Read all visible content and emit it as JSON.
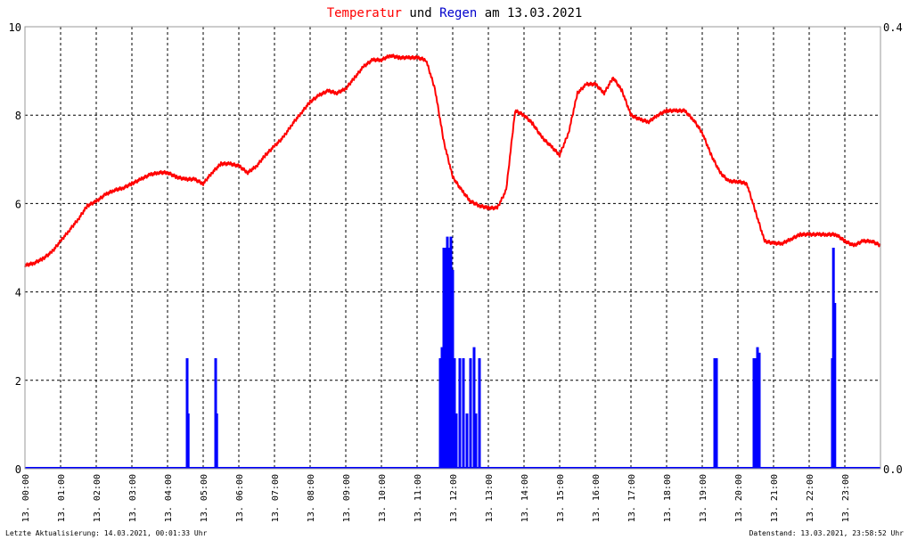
{
  "chart_data": {
    "type": "line",
    "title": {
      "part1": "Temperatur",
      "part2": " und ",
      "part3": "Regen",
      "part4": " am 13.03.2021"
    },
    "colors": {
      "temperature": "#ff0000",
      "rain": "#0000ff",
      "grid": "#000000",
      "frame": "#999999"
    },
    "ylim_left": [
      0,
      10
    ],
    "yticks_left": [
      "0",
      "2",
      "4",
      "6",
      "8",
      "10"
    ],
    "ylim_right": [
      0,
      0.4
    ],
    "yticks_right": [
      "0.0",
      "0.4"
    ],
    "xlim_hours": [
      0,
      24
    ],
    "xticks": [
      "13. 00:00",
      "13. 01:00",
      "13. 02:00",
      "13. 03:00",
      "13. 04:00",
      "13. 05:00",
      "13. 06:00",
      "13. 07:00",
      "13. 08:00",
      "13. 09:00",
      "13. 10:00",
      "13. 11:00",
      "13. 12:00",
      "13. 13:00",
      "13. 14:00",
      "13. 15:00",
      "13. 16:00",
      "13. 17:00",
      "13. 18:00",
      "13. 19:00",
      "13. 20:00",
      "13. 21:00",
      "13. 22:00",
      "13. 23:00"
    ],
    "grid": true,
    "series": [
      {
        "name": "Temperatur",
        "axis": "left",
        "x_hours": [
          0,
          0.25,
          0.5,
          0.75,
          1.0,
          1.25,
          1.5,
          1.75,
          2.0,
          2.25,
          2.5,
          2.75,
          3.0,
          3.25,
          3.5,
          3.75,
          4.0,
          4.25,
          4.5,
          4.75,
          5.0,
          5.25,
          5.5,
          5.75,
          6.0,
          6.25,
          6.5,
          6.75,
          7.0,
          7.25,
          7.5,
          7.75,
          8.0,
          8.25,
          8.5,
          8.75,
          9.0,
          9.25,
          9.5,
          9.75,
          10.0,
          10.25,
          10.5,
          10.75,
          11.0,
          11.25,
          11.5,
          11.75,
          12.0,
          12.25,
          12.5,
          12.75,
          13.0,
          13.25,
          13.5,
          13.75,
          14.0,
          14.25,
          14.5,
          14.75,
          15.0,
          15.25,
          15.5,
          15.75,
          16.0,
          16.25,
          16.5,
          16.75,
          17.0,
          17.25,
          17.5,
          17.75,
          18.0,
          18.25,
          18.5,
          18.75,
          19.0,
          19.25,
          19.5,
          19.75,
          20.0,
          20.25,
          20.5,
          20.75,
          21.0,
          21.25,
          21.5,
          21.75,
          22.0,
          22.25,
          22.5,
          22.75,
          23.0,
          23.25,
          23.5,
          23.75,
          24.0
        ],
        "values": [
          4.6,
          4.65,
          4.75,
          4.9,
          5.15,
          5.4,
          5.65,
          5.95,
          6.05,
          6.2,
          6.3,
          6.35,
          6.45,
          6.55,
          6.65,
          6.7,
          6.7,
          6.6,
          6.55,
          6.55,
          6.45,
          6.7,
          6.9,
          6.9,
          6.85,
          6.7,
          6.85,
          7.1,
          7.3,
          7.5,
          7.8,
          8.05,
          8.3,
          8.45,
          8.55,
          8.5,
          8.6,
          8.85,
          9.1,
          9.25,
          9.25,
          9.35,
          9.3,
          9.3,
          9.3,
          9.25,
          8.6,
          7.4,
          6.6,
          6.3,
          6.05,
          5.95,
          5.9,
          5.9,
          6.3,
          8.1,
          8.0,
          7.8,
          7.5,
          7.3,
          7.1,
          7.6,
          8.5,
          8.7,
          8.7,
          8.5,
          8.85,
          8.55,
          8.0,
          7.9,
          7.85,
          8.0,
          8.1,
          8.1,
          8.1,
          7.9,
          7.6,
          7.1,
          6.7,
          6.5,
          6.5,
          6.45,
          5.8,
          5.15,
          5.1,
          5.1,
          5.2,
          5.3,
          5.3,
          5.3,
          5.3,
          5.3,
          5.15,
          5.05,
          5.15,
          5.15,
          5.05
        ]
      },
      {
        "name": "Regen",
        "axis": "right",
        "bar_hours": [
          4.55,
          4.58,
          5.35,
          5.38,
          11.65,
          11.7,
          11.75,
          11.8,
          11.85,
          11.9,
          11.95,
          12.0,
          12.05,
          12.1,
          12.2,
          12.3,
          12.4,
          12.5,
          12.6,
          12.65,
          12.75,
          19.35,
          19.4,
          20.45,
          20.5,
          20.55,
          20.6,
          22.65,
          22.68,
          22.72
        ],
        "bar_values": [
          0.1,
          0.05,
          0.1,
          0.05,
          0.1,
          0.11,
          0.2,
          0.2,
          0.21,
          0.2,
          0.21,
          0.18,
          0.1,
          0.05,
          0.1,
          0.1,
          0.05,
          0.1,
          0.11,
          0.05,
          0.1,
          0.1,
          0.1,
          0.1,
          0.1,
          0.11,
          0.105,
          0.1,
          0.2,
          0.15
        ]
      }
    ]
  },
  "footer": {
    "left": "Letzte Aktualisierung: 14.03.2021, 00:01:33 Uhr",
    "right": "Datenstand: 13.03.2021, 23:58:52 Uhr"
  }
}
